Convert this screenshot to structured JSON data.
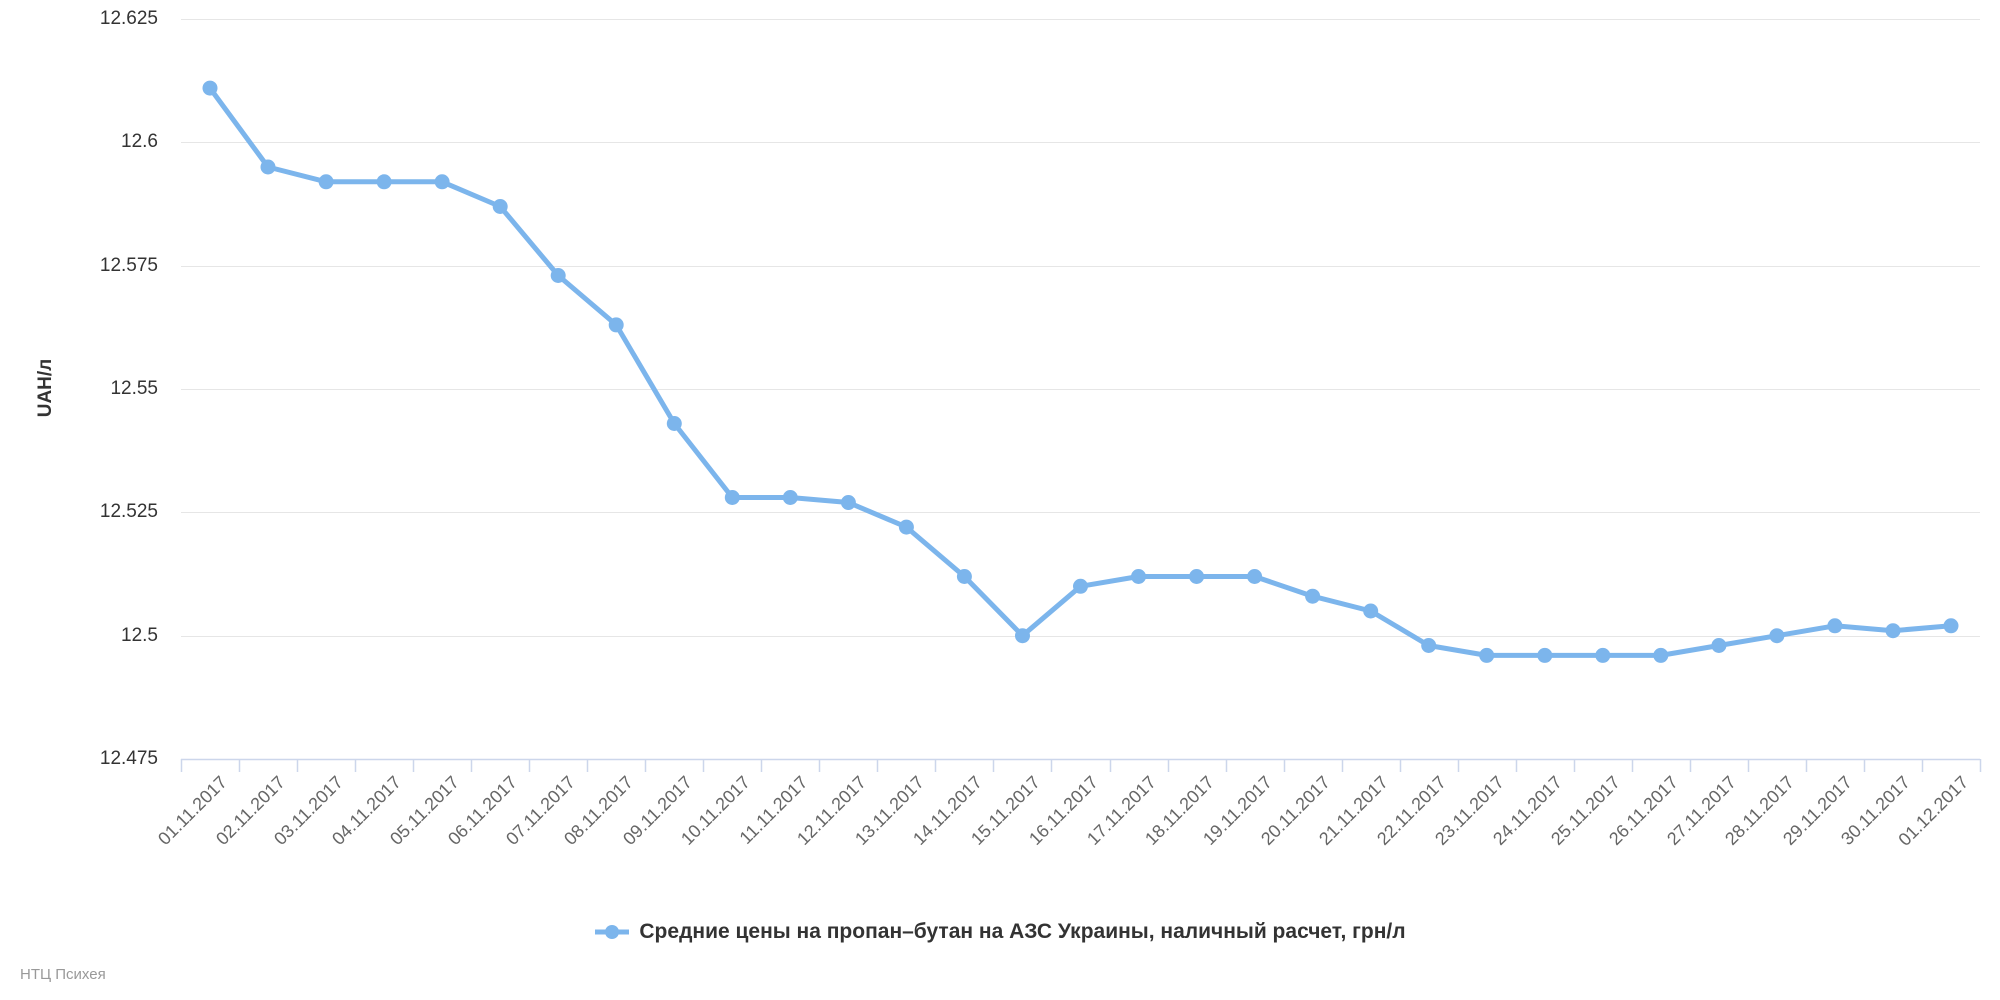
{
  "chart": {
    "y_axis_title": "UAH/л",
    "credits": "НТЦ Психея",
    "colors": {
      "series": "#7cb5ec",
      "grid": "#e6e6e6",
      "axis_line": "#ccd6eb",
      "y_label_text": "#333333",
      "x_label_text": "#666666",
      "legend_text": "#333333",
      "credits_text": "#999999",
      "background": "#ffffff"
    }
  },
  "chart_data": {
    "type": "line",
    "title": "",
    "xlabel": "",
    "ylabel": "UAH/л",
    "legend_position": "bottom",
    "grid": true,
    "ylim": [
      12.475,
      12.625
    ],
    "ytick_labels": [
      "12.625",
      "12.6",
      "12.575",
      "12.55",
      "12.525",
      "12.5",
      "12.475"
    ],
    "categories": [
      "01.11.2017",
      "02.11.2017",
      "03.11.2017",
      "04.11.2017",
      "05.11.2017",
      "06.11.2017",
      "07.11.2017",
      "08.11.2017",
      "09.11.2017",
      "10.11.2017",
      "11.11.2017",
      "12.11.2017",
      "13.11.2017",
      "14.11.2017",
      "15.11.2017",
      "16.11.2017",
      "17.11.2017",
      "18.11.2017",
      "19.11.2017",
      "20.11.2017",
      "21.11.2017",
      "22.11.2017",
      "23.11.2017",
      "24.11.2017",
      "25.11.2017",
      "26.11.2017",
      "27.11.2017",
      "28.11.2017",
      "29.11.2017",
      "30.11.2017",
      "01.12.2017"
    ],
    "series": [
      {
        "name": "Средние цены на пропан–бутан на АЗС Украины, наличный расчет, грн/л",
        "values": [
          12.611,
          12.595,
          12.592,
          12.592,
          12.592,
          12.587,
          12.573,
          12.563,
          12.543,
          12.528,
          12.528,
          12.527,
          12.522,
          12.512,
          12.5,
          12.51,
          12.512,
          12.512,
          12.512,
          12.508,
          12.505,
          12.498,
          12.496,
          12.496,
          12.496,
          12.496,
          12.498,
          12.5,
          12.502,
          12.501,
          12.502
        ]
      }
    ]
  }
}
